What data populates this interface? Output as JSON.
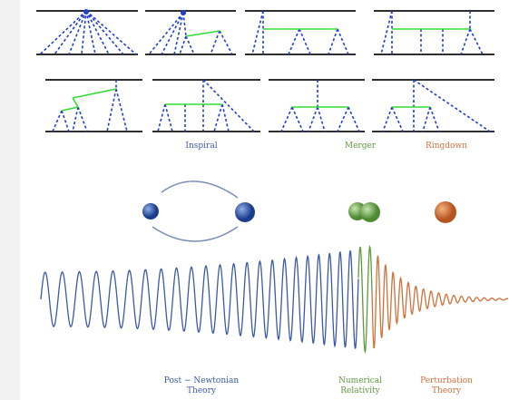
{
  "phases": [
    {
      "label": "Inspiral",
      "color": "#3a5aa8"
    },
    {
      "label": "Merger",
      "color": "#5e9a3e"
    },
    {
      "label": "Ringdown",
      "color": "#d0703a"
    }
  ],
  "methods": [
    {
      "lines": [
        "Post − Newtonian",
        "Theory"
      ],
      "color": "#3a5aa8"
    },
    {
      "lines": [
        "Numerical",
        "Relativity"
      ],
      "color": "#5e9a3e"
    },
    {
      "lines": [
        "Perturbation",
        "Theory"
      ],
      "color": "#d0703a"
    }
  ]
}
